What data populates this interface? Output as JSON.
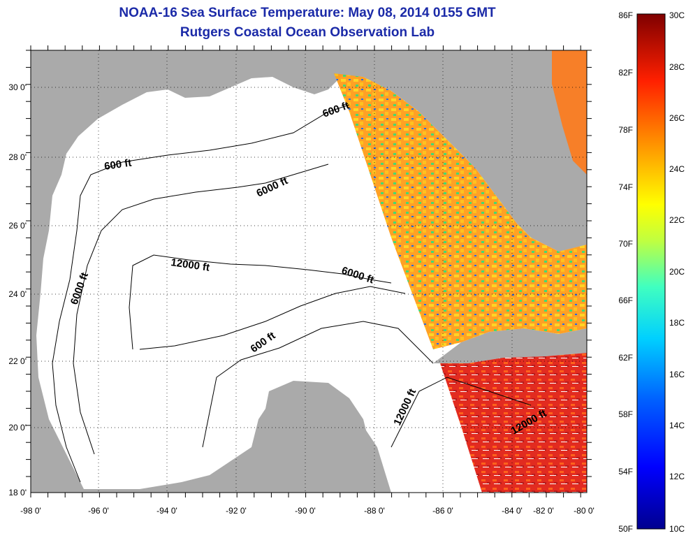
{
  "title": {
    "line1": "NOAA-16 Sea Surface Temperature:  May 08, 2014 0155 GMT",
    "line2": "Rutgers Coastal Ocean Observation Lab"
  },
  "axes": {
    "x_ticks": [
      "-98 0'",
      "-96 0'",
      "-94 0'",
      "-92 0'",
      "-90 0'",
      "-88 0'",
      "-86 0'",
      "-84 0'",
      "-82 0'",
      "-80 0'"
    ],
    "y_ticks": [
      "30 0'",
      "28 0'",
      "26 0'",
      "24 0'",
      "22 0'",
      "20 0'",
      "18 0'"
    ]
  },
  "contour_labels": [
    "600 ft",
    "600 ft",
    "6000 ft",
    "12000 ft",
    "6000 ft",
    "6000 ft",
    "600 ft",
    "12000 ft",
    "12000 ft"
  ],
  "colorbar": {
    "fahrenheit": [
      "86F",
      "82F",
      "78F",
      "74F",
      "70F",
      "66F",
      "62F",
      "58F",
      "54F",
      "50F"
    ],
    "celsius": [
      "30C",
      "28C",
      "26C",
      "24C",
      "22C",
      "20C",
      "18C",
      "16C",
      "14C",
      "12C",
      "10C"
    ],
    "colors": [
      "#7f0000",
      "#ff0000",
      "#ff7f00",
      "#ffff00",
      "#7fff7f",
      "#00ffff",
      "#007fff",
      "#0000ff",
      "#00008f"
    ]
  },
  "colors": {
    "land": "#aaaaaa",
    "water": "#ffffff",
    "title": "#1b2aa8"
  }
}
